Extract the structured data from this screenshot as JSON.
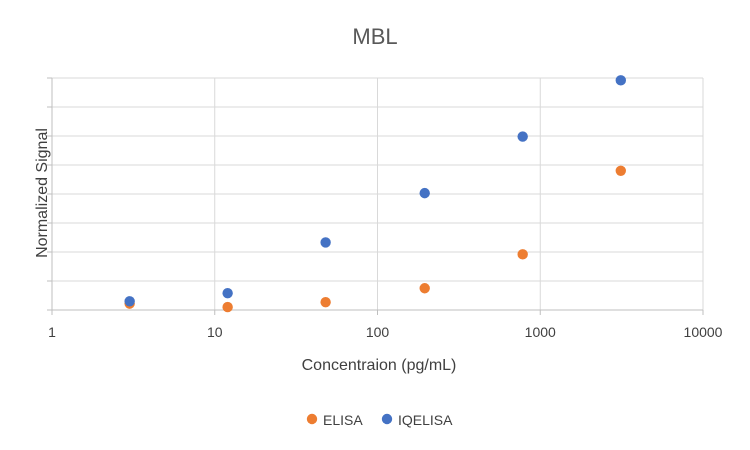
{
  "chart_data": {
    "type": "scatter",
    "title": "MBL",
    "xlabel": "Concentraion (pg/mL)",
    "ylabel": "Normalized Signal",
    "x_scale": "log",
    "xlim": [
      1,
      10000
    ],
    "x_ticks": [
      "1",
      "10",
      "100",
      "1000",
      "10000"
    ],
    "ylim": [
      0,
      8
    ],
    "y_tick_count": 9,
    "y_tick_labels_shown": false,
    "grid": true,
    "legend_position": "bottom",
    "series": [
      {
        "name": "ELISA",
        "color": "#ED7D31",
        "x": [
          3,
          12,
          48,
          195,
          780,
          3125
        ],
        "y": [
          0.22,
          0.1,
          0.27,
          0.75,
          1.92,
          4.8
        ]
      },
      {
        "name": "IQELISA",
        "color": "#4472C4",
        "x": [
          3,
          12,
          48,
          195,
          780,
          3125
        ],
        "y": [
          0.3,
          0.58,
          2.33,
          4.03,
          5.98,
          7.92
        ]
      }
    ]
  }
}
